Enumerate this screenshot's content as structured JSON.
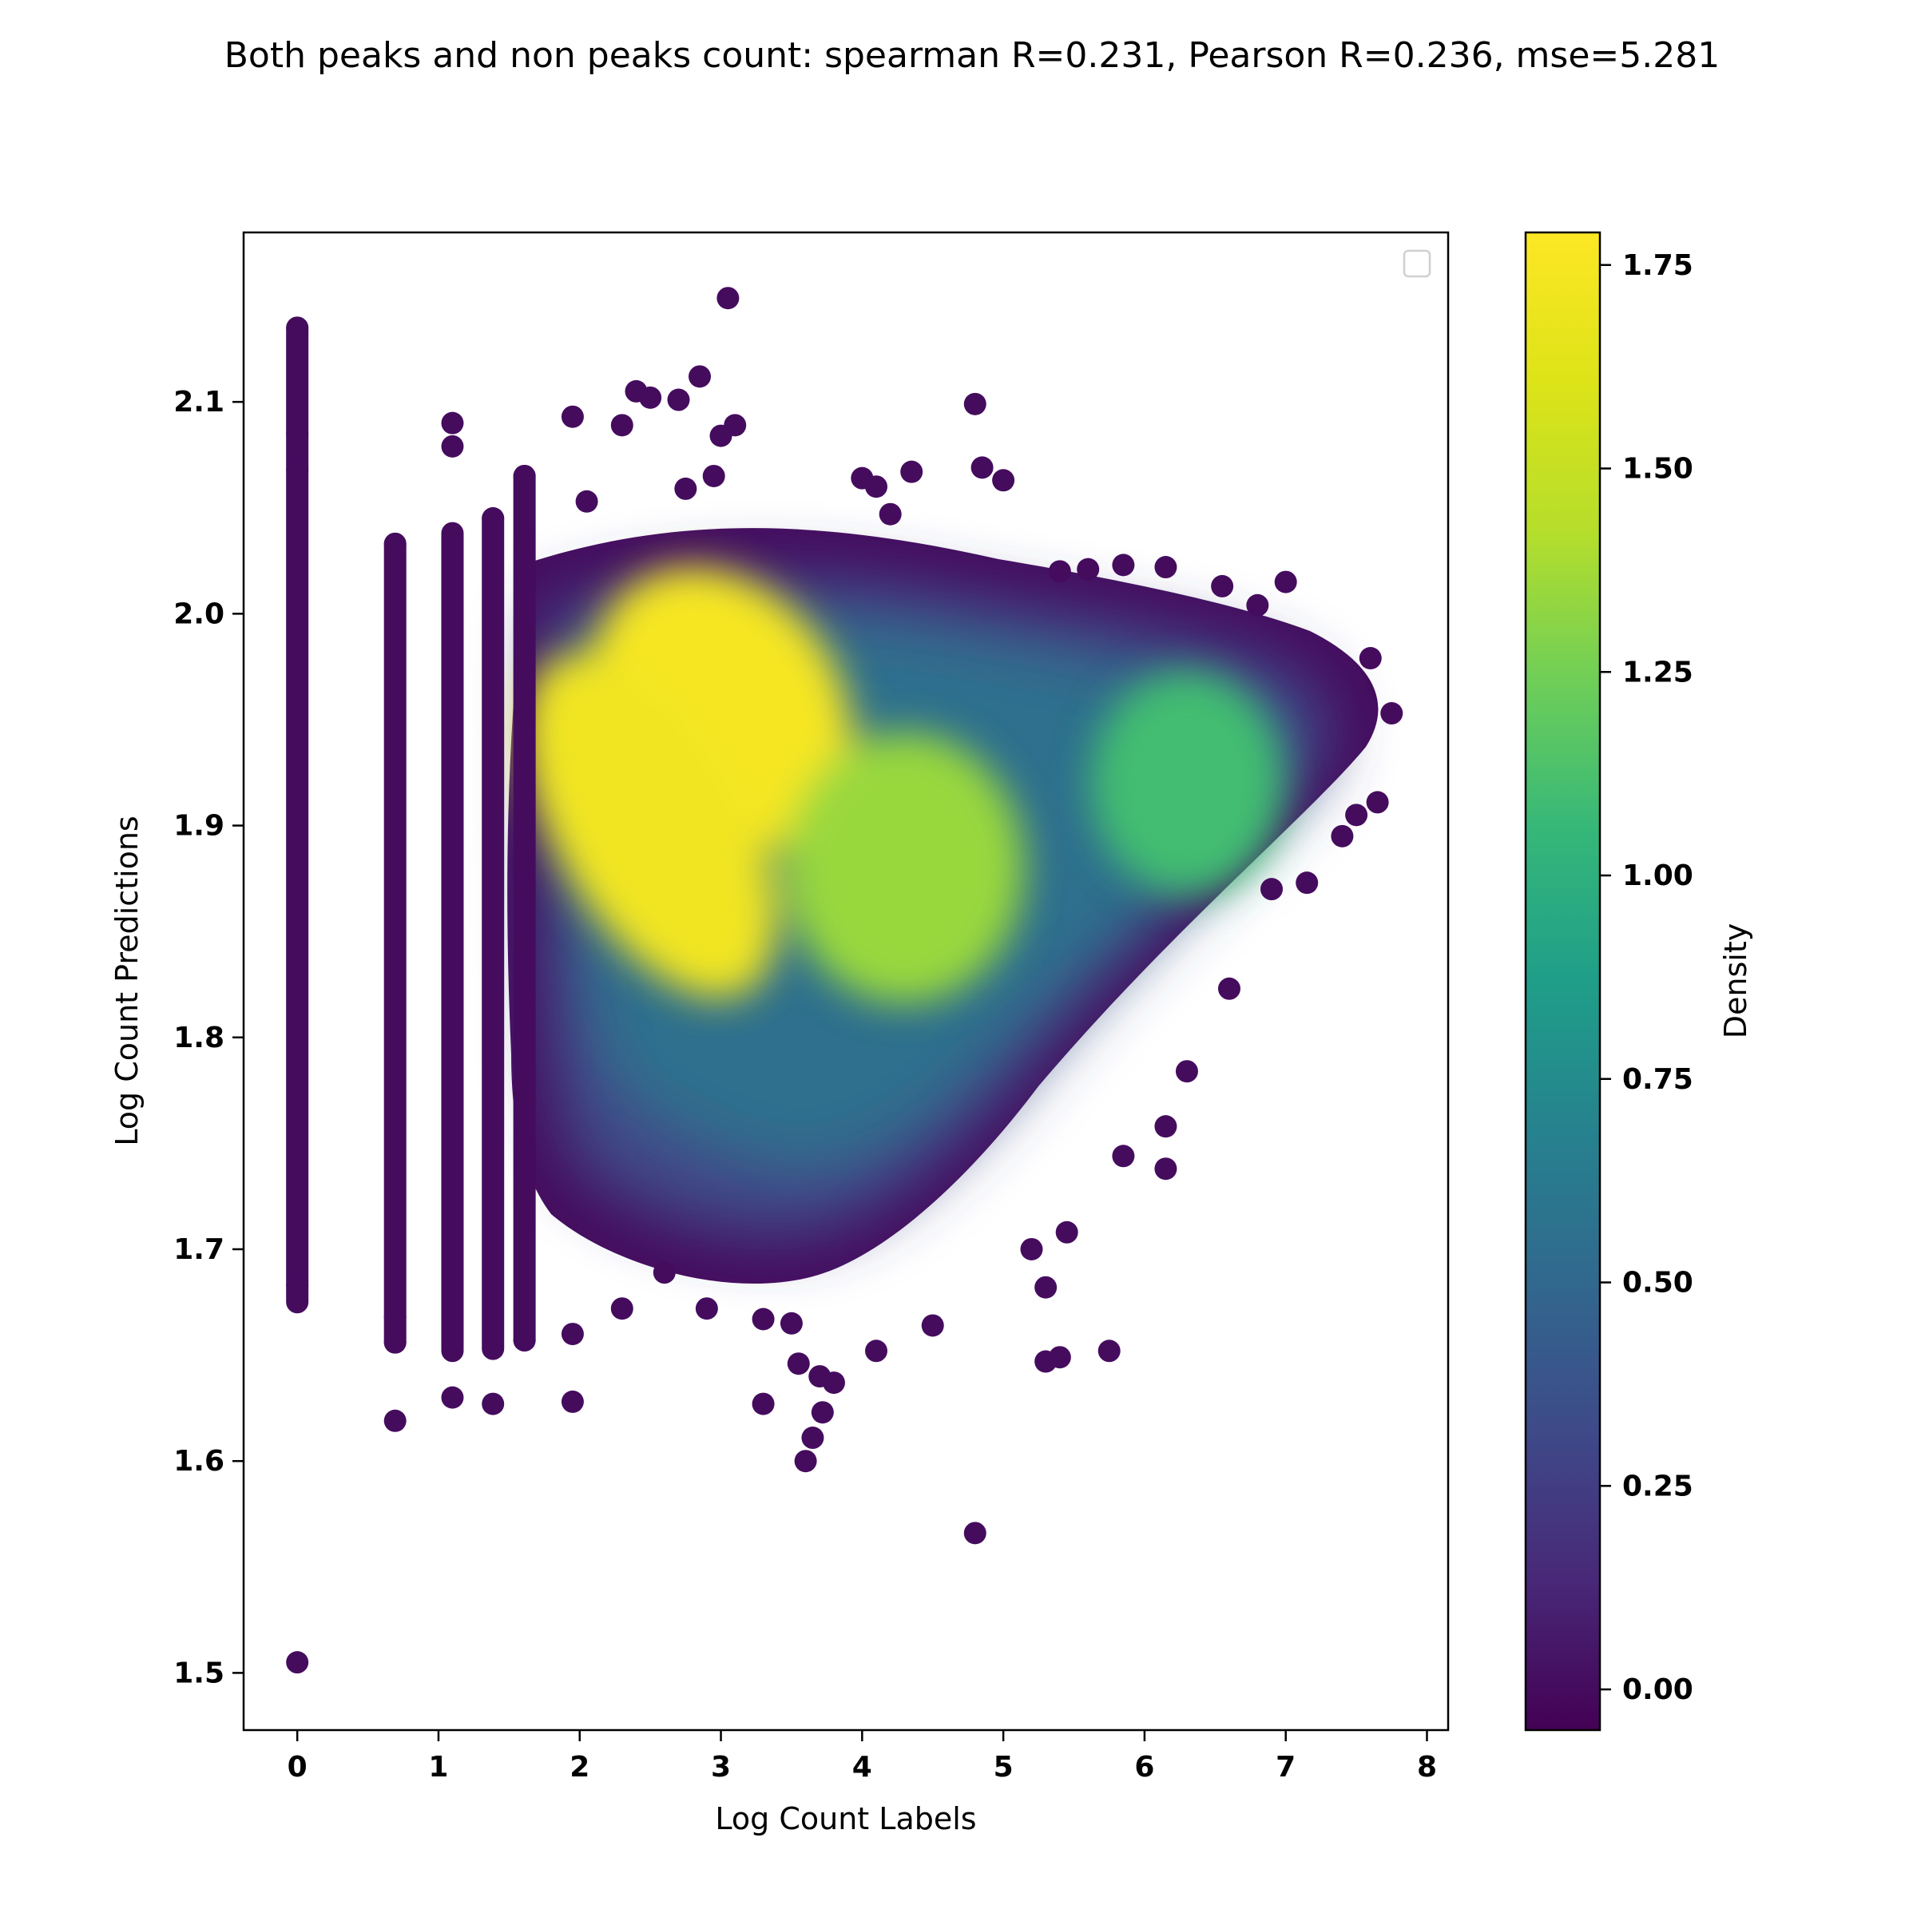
{
  "chart_data": {
    "type": "scatter",
    "title": "Both peaks and non peaks count: spearman R=0.231, Pearson R=0.236, mse=5.281",
    "xlabel": "Log Count Labels",
    "ylabel": "Log Count Predictions",
    "xlim": [
      -0.38,
      8.15
    ],
    "ylim": [
      1.473,
      2.18
    ],
    "x_ticks": [
      0,
      1,
      2,
      3,
      4,
      5,
      6,
      7,
      8
    ],
    "x_tick_labels": [
      "0",
      "1",
      "2",
      "3",
      "4",
      "5",
      "6",
      "7",
      "8"
    ],
    "y_ticks": [
      1.5,
      1.6,
      1.7,
      1.8,
      1.9,
      2.0,
      2.1
    ],
    "y_tick_labels": [
      "1.5",
      "1.6",
      "1.7",
      "1.8",
      "1.9",
      "2.0",
      "2.1"
    ],
    "grid": false,
    "legend": {
      "placement": "upper-right",
      "entries": []
    },
    "colorbar": {
      "label": "Density",
      "colormap": "viridis",
      "range": [
        -0.05,
        1.79
      ],
      "ticks": [
        0.0,
        0.25,
        0.5,
        0.75,
        1.0,
        1.25,
        1.5,
        1.75
      ],
      "tick_labels": [
        "0.00",
        "0.25",
        "0.50",
        "0.75",
        "1.00",
        "1.25",
        "1.50",
        "1.75"
      ]
    },
    "density_peaks": [
      {
        "x": 3.0,
        "y": 1.955,
        "density": 1.75
      },
      {
        "x": 2.5,
        "y": 1.9,
        "density": 1.72
      },
      {
        "x": 4.3,
        "y": 1.88,
        "density": 1.35
      },
      {
        "x": 6.3,
        "y": 1.92,
        "density": 1.1
      }
    ],
    "discrete_x_columns": [
      {
        "x": 0.0,
        "y_range": [
          1.675,
          2.135
        ]
      },
      {
        "x": 0.693,
        "y_range": [
          1.656,
          2.033
        ]
      },
      {
        "x": 1.099,
        "y_range": [
          1.652,
          2.038
        ]
      },
      {
        "x": 1.386,
        "y_range": [
          1.653,
          2.045
        ]
      },
      {
        "x": 1.609,
        "y_range": [
          1.657,
          2.065
        ]
      }
    ],
    "outlier_points": [
      {
        "x": 0.0,
        "y": 1.505
      },
      {
        "x": 0.0,
        "y": 2.135
      },
      {
        "x": 0.0,
        "y": 2.085
      },
      {
        "x": 0.0,
        "y": 2.068
      },
      {
        "x": 0.0,
        "y": 1.683
      },
      {
        "x": 0.693,
        "y": 1.619
      },
      {
        "x": 0.693,
        "y": 1.656
      },
      {
        "x": 0.693,
        "y": 1.668
      },
      {
        "x": 0.693,
        "y": 2.033
      },
      {
        "x": 1.099,
        "y": 1.63
      },
      {
        "x": 1.099,
        "y": 2.09
      },
      {
        "x": 1.099,
        "y": 2.079
      },
      {
        "x": 1.386,
        "y": 1.627
      },
      {
        "x": 1.386,
        "y": 2.045
      },
      {
        "x": 1.609,
        "y": 2.065
      },
      {
        "x": 1.609,
        "y": 1.657
      },
      {
        "x": 1.95,
        "y": 2.093
      },
      {
        "x": 1.95,
        "y": 1.628
      },
      {
        "x": 1.95,
        "y": 1.66
      },
      {
        "x": 2.05,
        "y": 2.053
      },
      {
        "x": 2.3,
        "y": 2.089
      },
      {
        "x": 2.4,
        "y": 2.105
      },
      {
        "x": 2.5,
        "y": 2.102
      },
      {
        "x": 2.7,
        "y": 2.101
      },
      {
        "x": 2.85,
        "y": 2.112
      },
      {
        "x": 3.05,
        "y": 2.149
      },
      {
        "x": 3.0,
        "y": 2.084
      },
      {
        "x": 3.1,
        "y": 2.089
      },
      {
        "x": 2.95,
        "y": 2.065
      },
      {
        "x": 2.75,
        "y": 2.059
      },
      {
        "x": 2.3,
        "y": 1.672
      },
      {
        "x": 2.6,
        "y": 1.689
      },
      {
        "x": 2.9,
        "y": 1.672
      },
      {
        "x": 3.3,
        "y": 1.627
      },
      {
        "x": 3.3,
        "y": 1.667
      },
      {
        "x": 3.5,
        "y": 1.665
      },
      {
        "x": 3.55,
        "y": 1.646
      },
      {
        "x": 3.6,
        "y": 1.6
      },
      {
        "x": 3.65,
        "y": 1.611
      },
      {
        "x": 3.7,
        "y": 1.64
      },
      {
        "x": 3.72,
        "y": 1.623
      },
      {
        "x": 3.8,
        "y": 1.637
      },
      {
        "x": 4.1,
        "y": 1.652
      },
      {
        "x": 4.5,
        "y": 1.664
      },
      {
        "x": 4.8,
        "y": 1.566
      },
      {
        "x": 4.8,
        "y": 2.099
      },
      {
        "x": 4.85,
        "y": 2.069
      },
      {
        "x": 5.0,
        "y": 2.063
      },
      {
        "x": 4.0,
        "y": 2.064
      },
      {
        "x": 4.1,
        "y": 2.06
      },
      {
        "x": 4.35,
        "y": 2.067
      },
      {
        "x": 4.2,
        "y": 2.047
      },
      {
        "x": 5.3,
        "y": 1.647
      },
      {
        "x": 5.4,
        "y": 1.649
      },
      {
        "x": 5.75,
        "y": 1.652
      },
      {
        "x": 5.3,
        "y": 1.682
      },
      {
        "x": 5.2,
        "y": 1.7
      },
      {
        "x": 5.45,
        "y": 1.708
      },
      {
        "x": 6.15,
        "y": 1.738
      },
      {
        "x": 6.15,
        "y": 1.758
      },
      {
        "x": 5.85,
        "y": 1.744
      },
      {
        "x": 6.3,
        "y": 1.784
      },
      {
        "x": 6.6,
        "y": 1.823
      },
      {
        "x": 6.9,
        "y": 1.87
      },
      {
        "x": 7.15,
        "y": 1.873
      },
      {
        "x": 7.4,
        "y": 1.895
      },
      {
        "x": 7.5,
        "y": 1.905
      },
      {
        "x": 7.65,
        "y": 1.911
      },
      {
        "x": 7.75,
        "y": 1.953
      },
      {
        "x": 7.6,
        "y": 1.979
      },
      {
        "x": 7.0,
        "y": 2.015
      },
      {
        "x": 6.8,
        "y": 2.004
      },
      {
        "x": 6.55,
        "y": 2.013
      },
      {
        "x": 6.15,
        "y": 2.022
      },
      {
        "x": 5.85,
        "y": 2.023
      },
      {
        "x": 5.4,
        "y": 2.02
      },
      {
        "x": 5.6,
        "y": 2.021
      }
    ]
  }
}
